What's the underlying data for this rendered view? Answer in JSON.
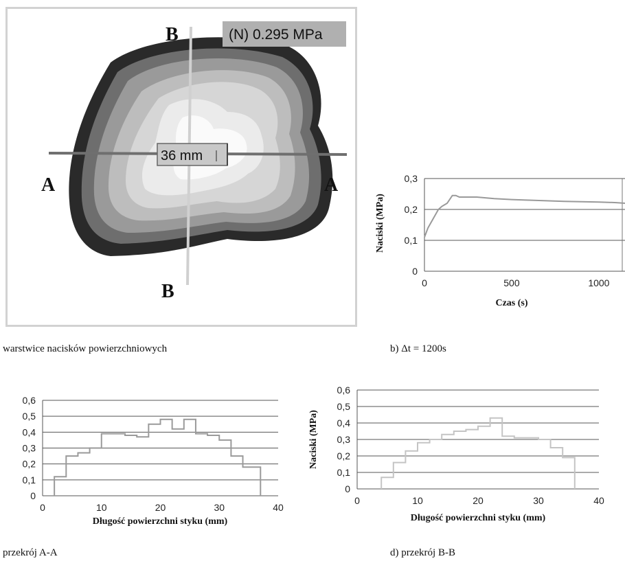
{
  "panel_a": {
    "value_box": "(N) 0.295 MPa",
    "scale_box": "36 mm",
    "section_labels": {
      "A": "A",
      "B": "B"
    },
    "caption": "warstwice nacisków powierzchniowych"
  },
  "chart_data": [
    {
      "id": "b",
      "type": "line",
      "caption": "b) Δt = 1200s",
      "xlabel": "Czas (s)",
      "ylabel": "Naciski (MPa)",
      "xlim": [
        0,
        1150
      ],
      "ylim": [
        0,
        0.3
      ],
      "x_ticks": [
        "0",
        "500",
        "1000"
      ],
      "x_tick_values": [
        0,
        500,
        1000
      ],
      "y_ticks": [
        "0",
        "0,1",
        "0,2",
        "0,3"
      ],
      "y_tick_values": [
        0,
        0.1,
        0.2,
        0.3
      ],
      "grid": true,
      "series": [
        {
          "x": [
            0,
            20,
            50,
            80,
            100,
            130,
            160,
            180,
            200,
            250,
            300,
            400,
            500,
            600,
            700,
            800,
            900,
            1000,
            1100,
            1150
          ],
          "y": [
            0.11,
            0.14,
            0.17,
            0.2,
            0.21,
            0.22,
            0.245,
            0.245,
            0.24,
            0.24,
            0.24,
            0.235,
            0.232,
            0.23,
            0.228,
            0.226,
            0.225,
            0.224,
            0.222,
            0.22
          ]
        }
      ]
    },
    {
      "id": "c",
      "type": "line",
      "caption": "przekrój A-A",
      "xlabel": "Długość powierzchni styku (mm)",
      "ylabel": "",
      "xlim": [
        0,
        40
      ],
      "ylim": [
        0,
        0.6
      ],
      "x_ticks": [
        "0",
        "10",
        "20",
        "30",
        "40"
      ],
      "x_tick_values": [
        0,
        10,
        20,
        30,
        40
      ],
      "y_ticks": [
        "0",
        "0,1",
        "0,2",
        "0,3",
        "0,4",
        "0,5",
        "0,6"
      ],
      "y_tick_values": [
        0,
        0.1,
        0.2,
        0.3,
        0.4,
        0.5,
        0.6
      ],
      "grid": true,
      "series": [
        {
          "x": [
            2,
            2,
            4,
            4,
            6,
            6,
            8,
            8,
            10,
            10,
            14,
            14,
            16,
            16,
            18,
            18,
            20,
            20,
            22,
            22,
            24,
            24,
            26,
            26,
            28,
            28,
            30,
            30,
            32,
            32,
            34,
            34,
            36,
            36,
            37,
            37
          ],
          "y": [
            0,
            0.12,
            0.12,
            0.25,
            0.25,
            0.27,
            0.27,
            0.3,
            0.3,
            0.39,
            0.39,
            0.38,
            0.38,
            0.37,
            0.37,
            0.45,
            0.45,
            0.48,
            0.48,
            0.42,
            0.42,
            0.48,
            0.48,
            0.39,
            0.39,
            0.38,
            0.38,
            0.35,
            0.35,
            0.25,
            0.25,
            0.18,
            0.18,
            0.18,
            0.18,
            0
          ]
        }
      ]
    },
    {
      "id": "d",
      "type": "line",
      "caption": "d) przekrój B-B",
      "xlabel": "Długość powierzchni styku (mm)",
      "ylabel": "Naciski (MPa)",
      "xlim": [
        0,
        40
      ],
      "ylim": [
        0,
        0.6
      ],
      "x_ticks": [
        "0",
        "10",
        "20",
        "30",
        "40"
      ],
      "x_tick_values": [
        0,
        10,
        20,
        30,
        40
      ],
      "y_ticks": [
        "0",
        "0,1",
        "0,2",
        "0,3",
        "0,4",
        "0,5",
        "0,6"
      ],
      "y_tick_values": [
        0,
        0.1,
        0.2,
        0.3,
        0.4,
        0.5,
        0.6
      ],
      "grid": true,
      "series": [
        {
          "x": [
            4,
            4,
            6,
            6,
            8,
            8,
            10,
            10,
            12,
            12,
            14,
            14,
            16,
            16,
            18,
            18,
            20,
            20,
            22,
            22,
            24,
            24,
            26,
            26,
            30,
            30,
            32,
            32,
            34,
            34,
            36,
            36
          ],
          "y": [
            0,
            0.07,
            0.07,
            0.16,
            0.16,
            0.23,
            0.23,
            0.28,
            0.28,
            0.3,
            0.3,
            0.33,
            0.33,
            0.35,
            0.35,
            0.36,
            0.36,
            0.38,
            0.38,
            0.43,
            0.43,
            0.32,
            0.32,
            0.31,
            0.31,
            0.3,
            0.3,
            0.25,
            0.25,
            0.19,
            0.19,
            0
          ]
        }
      ]
    }
  ]
}
